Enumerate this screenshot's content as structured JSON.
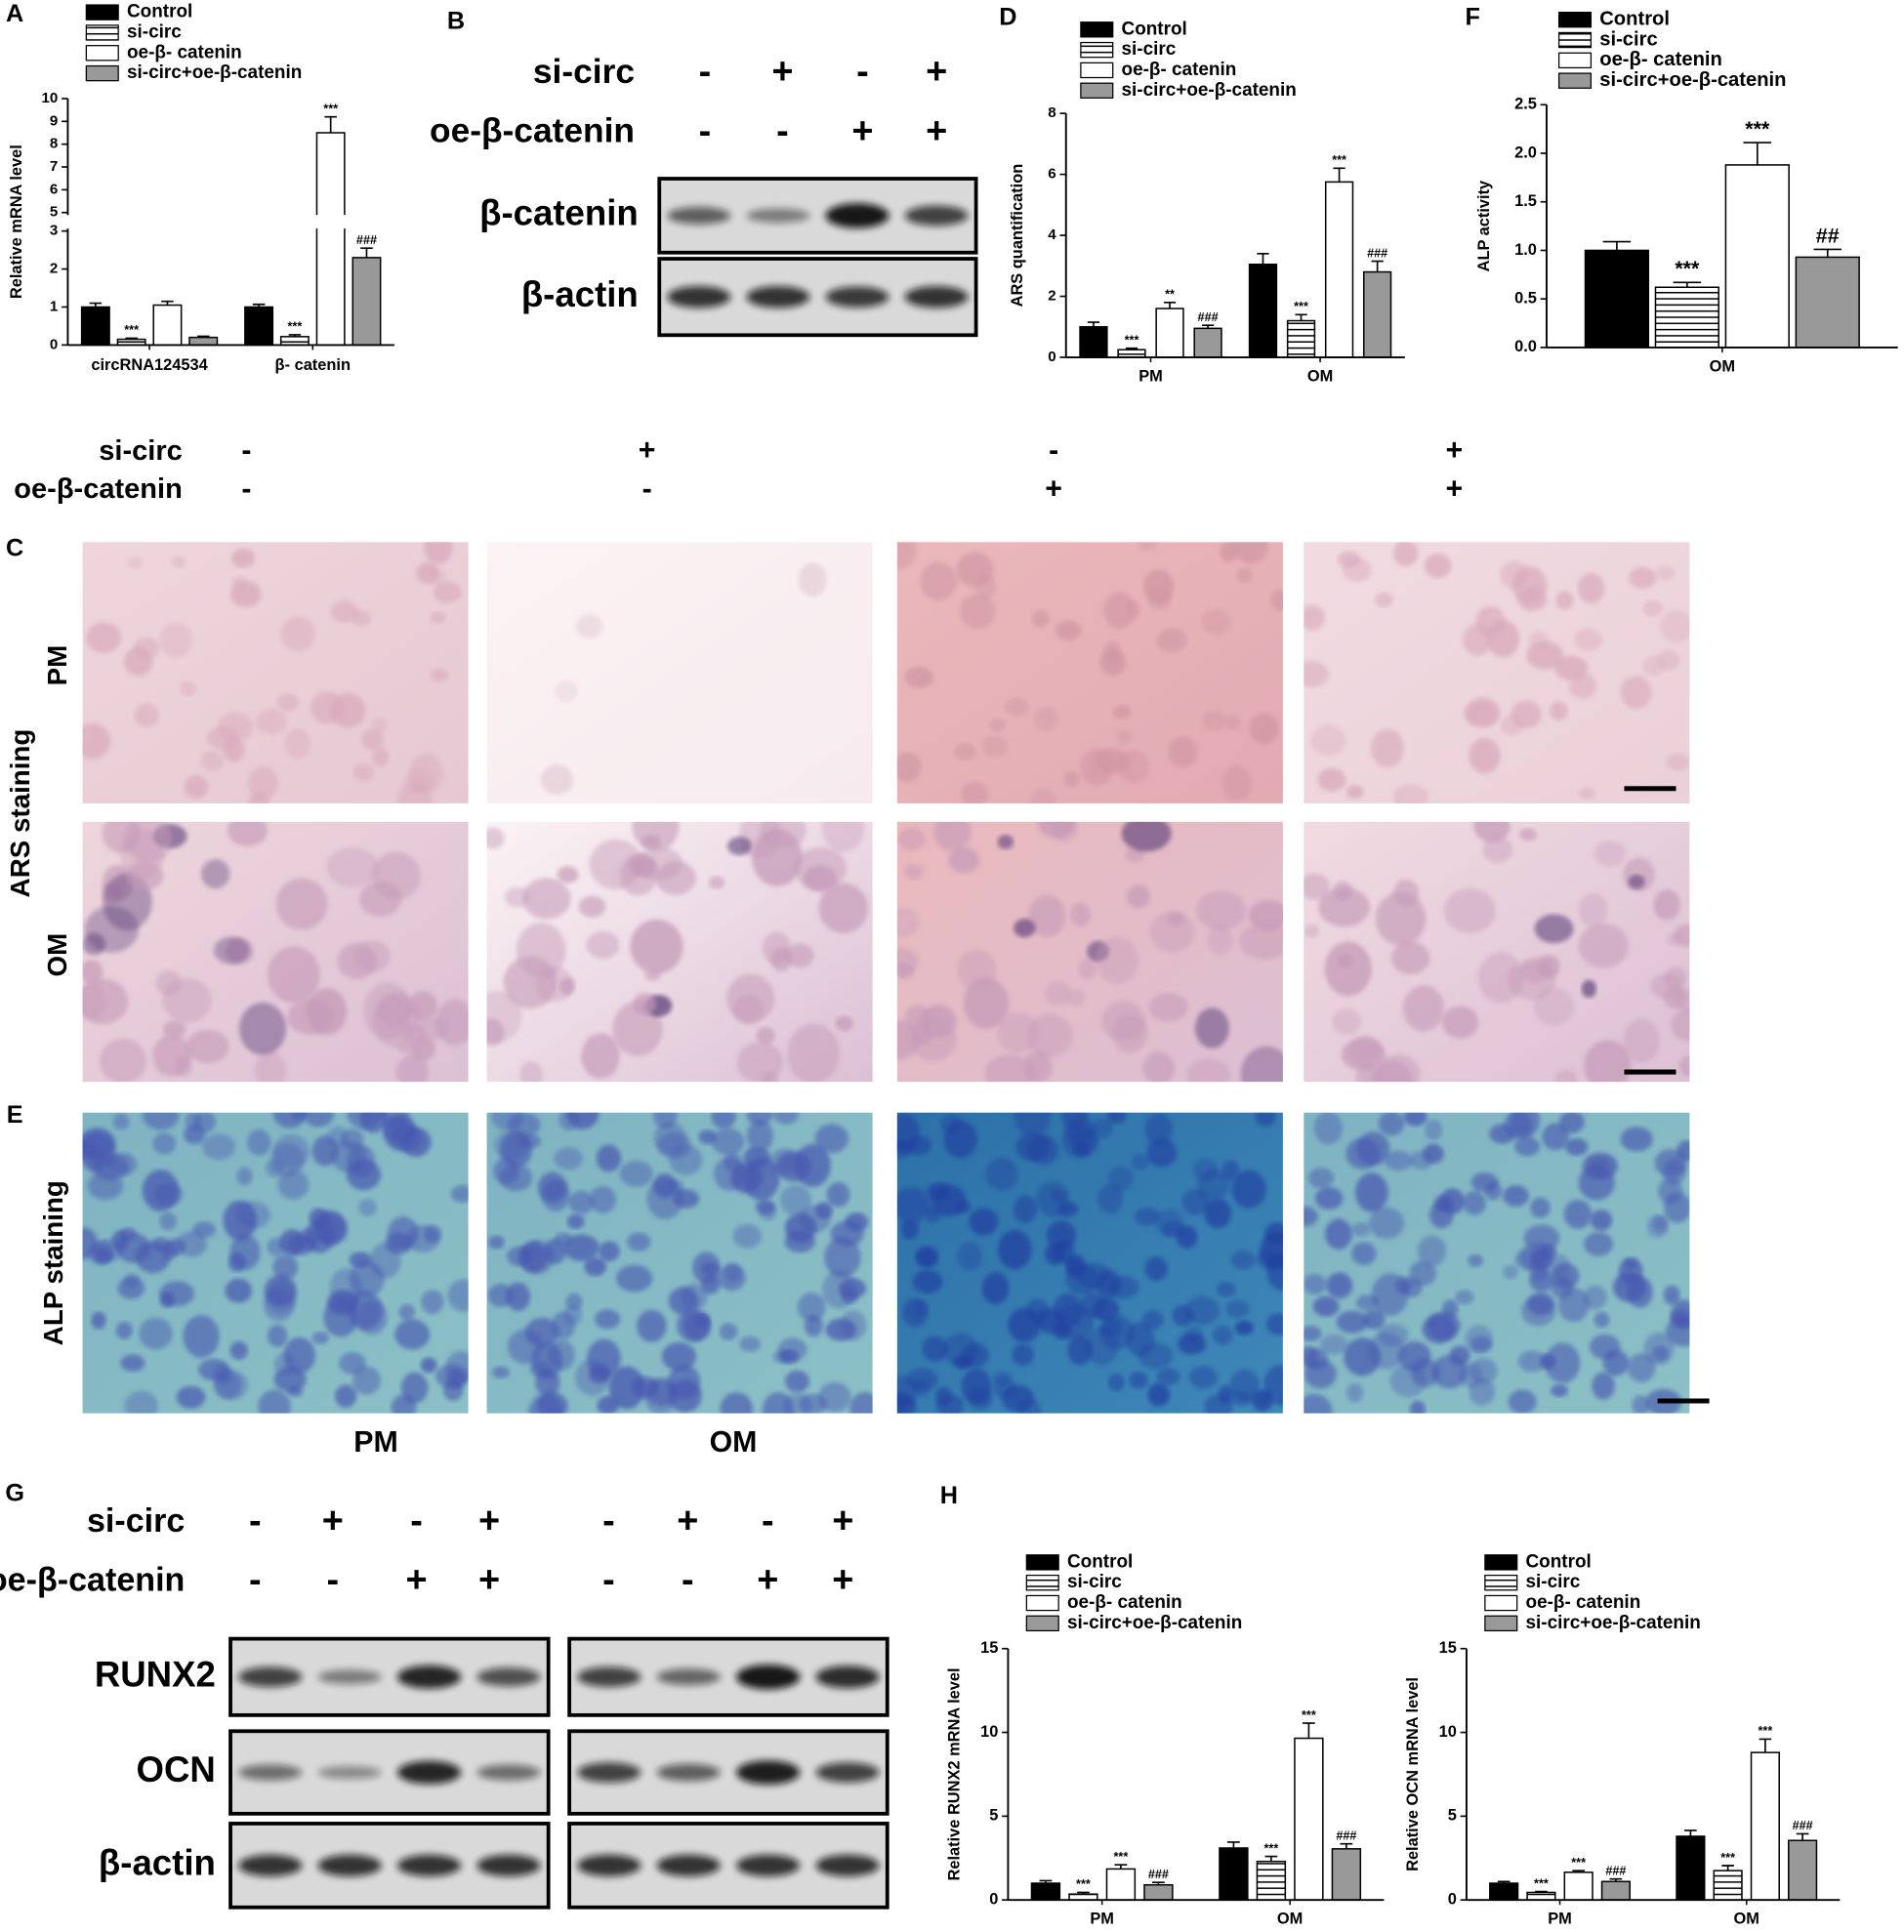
{
  "chart_data": [
    {
      "type": "bar",
      "ylabel": "Relative mRNA level",
      "categories": [
        "circRNA124534",
        "β- catenin"
      ],
      "ylim": [
        0,
        10
      ],
      "ybreak": [
        3,
        5
      ],
      "yticks": [
        0,
        1,
        2,
        3,
        5,
        6,
        7,
        8,
        9,
        10
      ],
      "legend": "top",
      "series": [
        {
          "name": "Control",
          "color": "#000000",
          "values": [
            1.0,
            1.0
          ],
          "errors": [
            0.1,
            0.07
          ],
          "annotations": [
            null,
            null
          ]
        },
        {
          "name": "si-circ",
          "color": "#ffffff",
          "pattern": "horizontal-stripes",
          "values": [
            0.15,
            0.22
          ],
          "errors": [
            0.03,
            0.05
          ],
          "annotations": [
            "***",
            "***"
          ]
        },
        {
          "name": "oe-β- catenin",
          "color": "#ffffff",
          "values": [
            1.05,
            8.5
          ],
          "errors": [
            0.1,
            0.7
          ],
          "annotations": [
            null,
            "***"
          ]
        },
        {
          "name": "si-circ+oe-β-catenin",
          "color": "#999999",
          "values": [
            0.2,
            2.3
          ],
          "errors": [
            0.03,
            0.25
          ],
          "annotations": [
            null,
            "###"
          ]
        }
      ]
    },
    {
      "type": "bar",
      "ylabel": "ARS quantification",
      "categories": [
        "PM",
        "OM"
      ],
      "ylim": [
        0,
        8
      ],
      "yticks": [
        0,
        2,
        4,
        6,
        8
      ],
      "legend": "top",
      "series": [
        {
          "name": "Control",
          "color": "#000000",
          "values": [
            1.0,
            3.05
          ],
          "errors": [
            0.15,
            0.35
          ],
          "annotations": [
            null,
            null
          ]
        },
        {
          "name": "si-circ",
          "color": "#ffffff",
          "pattern": "horizontal-stripes",
          "values": [
            0.25,
            1.2
          ],
          "errors": [
            0.05,
            0.2
          ],
          "annotations": [
            "***",
            "***"
          ]
        },
        {
          "name": "oe-β- catenin",
          "color": "#ffffff",
          "values": [
            1.6,
            5.75
          ],
          "errors": [
            0.2,
            0.45
          ],
          "annotations": [
            "**",
            "***"
          ]
        },
        {
          "name": "si-circ+oe-β-catenin",
          "color": "#999999",
          "values": [
            0.95,
            2.8
          ],
          "errors": [
            0.1,
            0.35
          ],
          "annotations": [
            "###",
            "###"
          ]
        }
      ]
    },
    {
      "type": "bar",
      "ylabel": "ALP activity",
      "categories": [
        "OM"
      ],
      "ylim": [
        0,
        2.5
      ],
      "yticks": [
        {
          "value": 0,
          "label": "0.0"
        },
        0.5,
        {
          "value": 1,
          "label": "1.0"
        },
        1.5,
        {
          "value": 2,
          "label": "2.0"
        },
        2.5
      ],
      "legend": "top",
      "series": [
        {
          "name": "Control",
          "color": "#000000",
          "values": [
            1.0
          ],
          "errors": [
            0.09
          ],
          "annotations": [
            null
          ]
        },
        {
          "name": "si-circ",
          "color": "#ffffff",
          "pattern": "horizontal-stripes",
          "values": [
            0.62
          ],
          "errors": [
            0.05
          ],
          "annotations": [
            "***"
          ]
        },
        {
          "name": "oe-β- catenin",
          "color": "#ffffff",
          "values": [
            1.88
          ],
          "errors": [
            0.23
          ],
          "annotations": [
            "***"
          ]
        },
        {
          "name": "si-circ+oe-β-catenin",
          "color": "#999999",
          "values": [
            0.93
          ],
          "errors": [
            0.08
          ],
          "annotations": [
            "##"
          ]
        }
      ]
    },
    {
      "type": "bar",
      "ylabel": "Relative RUNX2 mRNA level",
      "categories": [
        "PM",
        "OM"
      ],
      "ylim": [
        0,
        15
      ],
      "yticks": [
        0,
        5,
        10,
        15
      ],
      "legend": "top",
      "series": [
        {
          "name": "Control",
          "color": "#000000",
          "values": [
            1.0,
            3.1
          ],
          "errors": [
            0.15,
            0.35
          ],
          "annotations": [
            null,
            null
          ]
        },
        {
          "name": "si-circ",
          "color": "#ffffff",
          "pattern": "horizontal-stripes",
          "values": [
            0.35,
            2.3
          ],
          "errors": [
            0.1,
            0.3
          ],
          "annotations": [
            "***",
            "***"
          ]
        },
        {
          "name": "oe-β- catenin",
          "color": "#ffffff",
          "values": [
            1.85,
            9.65
          ],
          "errors": [
            0.25,
            0.9
          ],
          "annotations": [
            "***",
            "***"
          ]
        },
        {
          "name": "si-circ+oe-β-catenin",
          "color": "#999999",
          "values": [
            0.9,
            3.05
          ],
          "errors": [
            0.15,
            0.3
          ],
          "annotations": [
            "###",
            "###"
          ]
        }
      ]
    },
    {
      "type": "bar",
      "ylabel": "Relative OCN mRNA level",
      "categories": [
        "PM",
        "OM"
      ],
      "ylim": [
        0,
        15
      ],
      "yticks": [
        0,
        5,
        10,
        15
      ],
      "legend": "top",
      "series": [
        {
          "name": "Control",
          "color": "#000000",
          "values": [
            1.0,
            3.8
          ],
          "errors": [
            0.1,
            0.35
          ],
          "annotations": [
            null,
            null
          ]
        },
        {
          "name": "si-circ",
          "color": "#ffffff",
          "pattern": "horizontal-stripes",
          "values": [
            0.45,
            1.75
          ],
          "errors": [
            0.05,
            0.3
          ],
          "annotations": [
            "***",
            "***"
          ]
        },
        {
          "name": "oe-β- catenin",
          "color": "#ffffff",
          "values": [
            1.65,
            8.8
          ],
          "errors": [
            0.1,
            0.8
          ],
          "annotations": [
            "***",
            "***"
          ]
        },
        {
          "name": "si-circ+oe-β-catenin",
          "color": "#999999",
          "values": [
            1.1,
            3.55
          ],
          "errors": [
            0.15,
            0.4
          ],
          "annotations": [
            "###",
            "###"
          ]
        }
      ]
    }
  ],
  "panel_labels": [
    "A",
    "B",
    "C",
    "D",
    "E",
    "F",
    "G",
    "H"
  ],
  "blot_b": {
    "conditions": [
      {
        "name": "si-circ",
        "signs": [
          "-",
          "+",
          "-",
          "+"
        ]
      },
      {
        "name": "oe-β-catenin",
        "signs": [
          "-",
          "-",
          "+",
          "+"
        ]
      }
    ],
    "bands": [
      "β-catenin",
      "β-actin"
    ]
  },
  "staining": {
    "conditions": [
      {
        "name": "si-circ",
        "signs": [
          "-",
          "+",
          "-",
          "+"
        ]
      },
      {
        "name": "oe-β-catenin",
        "signs": [
          "-",
          "-",
          "+",
          "+"
        ]
      }
    ],
    "ars_title": "ARS staining",
    "ars_rows": [
      "PM",
      "OM"
    ],
    "alp_title": "ALP staining",
    "alp_columns": [
      "PM",
      "OM"
    ]
  },
  "blot_g": {
    "conditions": [
      {
        "name": "si-circ",
        "signs": [
          "-",
          "+",
          "-",
          "+",
          "-",
          "+",
          "-",
          "+"
        ]
      },
      {
        "name": "oe-β-catenin",
        "signs": [
          "-",
          "-",
          "+",
          "+",
          "-",
          "-",
          "+",
          "+"
        ]
      }
    ],
    "bands": [
      "RUNX2",
      "OCN",
      "β-actin"
    ]
  }
}
